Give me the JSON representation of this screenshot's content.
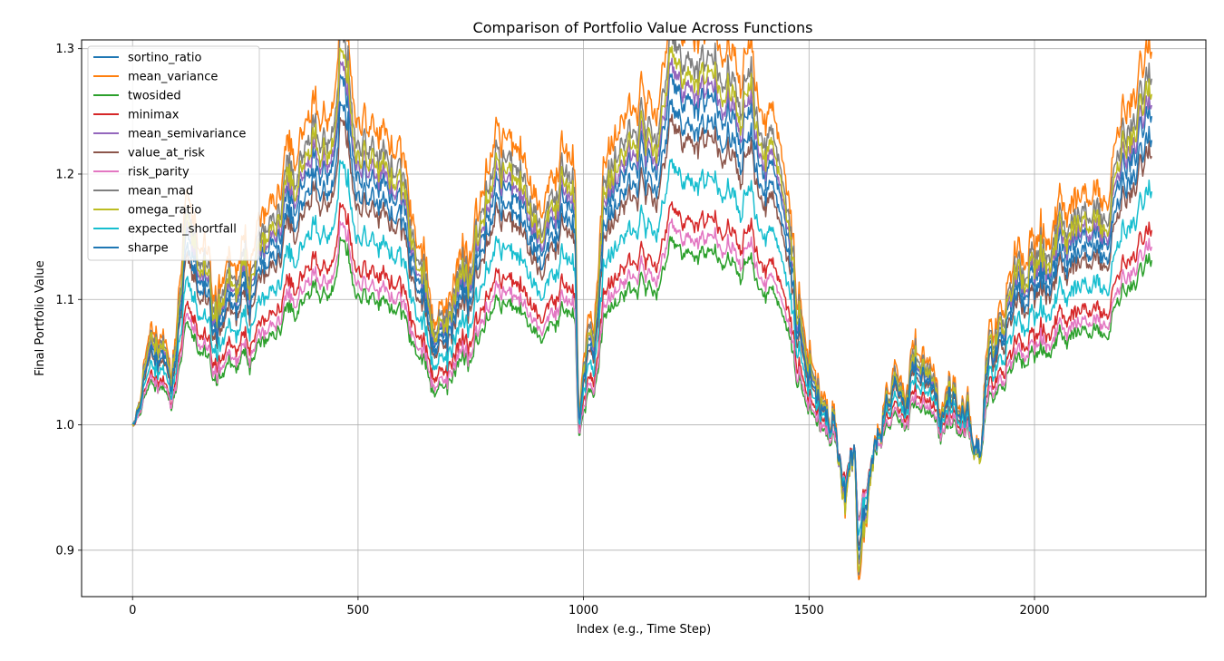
{
  "chart_data": {
    "type": "line",
    "title": "Comparison of Portfolio Value Across Functions",
    "xlabel": "Index (e.g., Time Step)",
    "ylabel": "Final Portfolio Value",
    "xlim": [
      -113,
      2380
    ],
    "ylim": [
      0.863,
      1.307
    ],
    "xticks": [
      0,
      500,
      1000,
      1500,
      2000
    ],
    "yticks": [
      0.9,
      1.0,
      1.1,
      1.2,
      1.3
    ],
    "xtick_labels": [
      "0",
      "500",
      "1000",
      "1500",
      "2000"
    ],
    "ytick_labels": [
      "0.9",
      "1.0",
      "1.1",
      "1.2",
      "1.3"
    ],
    "grid": true,
    "legend_position": "top-left",
    "x_anchor": [
      0,
      40,
      80,
      120,
      160,
      185,
      220,
      260,
      300,
      350,
      400,
      440,
      470,
      500,
      550,
      600,
      640,
      670,
      700,
      750,
      800,
      850,
      900,
      950,
      980,
      990,
      1000,
      1020,
      1050,
      1100,
      1150,
      1200,
      1260,
      1300,
      1350,
      1400,
      1450,
      1480,
      1500,
      1550,
      1580,
      1600,
      1610,
      1620,
      1650,
      1700,
      1750,
      1800,
      1850,
      1880,
      1900,
      1950,
      2000,
      2050,
      2100,
      2150,
      2200,
      2230,
      2260
    ],
    "base_curve": [
      1.0,
      1.04,
      1.03,
      1.1,
      1.09,
      1.05,
      1.07,
      1.08,
      1.1,
      1.14,
      1.16,
      1.16,
      1.21,
      1.16,
      1.15,
      1.13,
      1.08,
      1.06,
      1.07,
      1.09,
      1.14,
      1.14,
      1.13,
      1.13,
      1.12,
      1.0,
      1.03,
      1.05,
      1.14,
      1.16,
      1.17,
      1.2,
      1.21,
      1.2,
      1.19,
      1.16,
      1.12,
      1.06,
      1.03,
      1.0,
      0.96,
      0.97,
      0.92,
      0.94,
      1.0,
      1.02,
      1.03,
      1.02,
      1.01,
      0.98,
      1.04,
      1.08,
      1.09,
      1.1,
      1.12,
      1.11,
      1.16,
      1.17,
      1.2
    ],
    "series": [
      {
        "name": "sortino_ratio",
        "color": "#1f77b4",
        "amplitude": 1.3,
        "offset": 0.0
      },
      {
        "name": "mean_variance",
        "color": "#ff7f0e",
        "amplitude": 1.55,
        "offset": 0.005
      },
      {
        "name": "twosided",
        "color": "#2ca02c",
        "amplitude": 0.75,
        "offset": -0.012
      },
      {
        "name": "minimax",
        "color": "#d62728",
        "amplitude": 0.85,
        "offset": -0.006
      },
      {
        "name": "mean_semivariance",
        "color": "#9467bd",
        "amplitude": 1.35,
        "offset": 0.0
      },
      {
        "name": "value_at_risk",
        "color": "#8c564b",
        "amplitude": 1.15,
        "offset": -0.002
      },
      {
        "name": "risk_parity",
        "color": "#e377c2",
        "amplitude": 0.8,
        "offset": -0.01
      },
      {
        "name": "mean_mad",
        "color": "#7f7f7f",
        "amplitude": 1.45,
        "offset": 0.002
      },
      {
        "name": "omega_ratio",
        "color": "#bcbd22",
        "amplitude": 1.4,
        "offset": 0.0
      },
      {
        "name": "expected_shortfall",
        "color": "#17becf",
        "amplitude": 1.0,
        "offset": -0.004
      },
      {
        "name": "sharpe",
        "color": "#1f77b4",
        "amplitude": 1.2,
        "offset": 0.0
      }
    ]
  }
}
